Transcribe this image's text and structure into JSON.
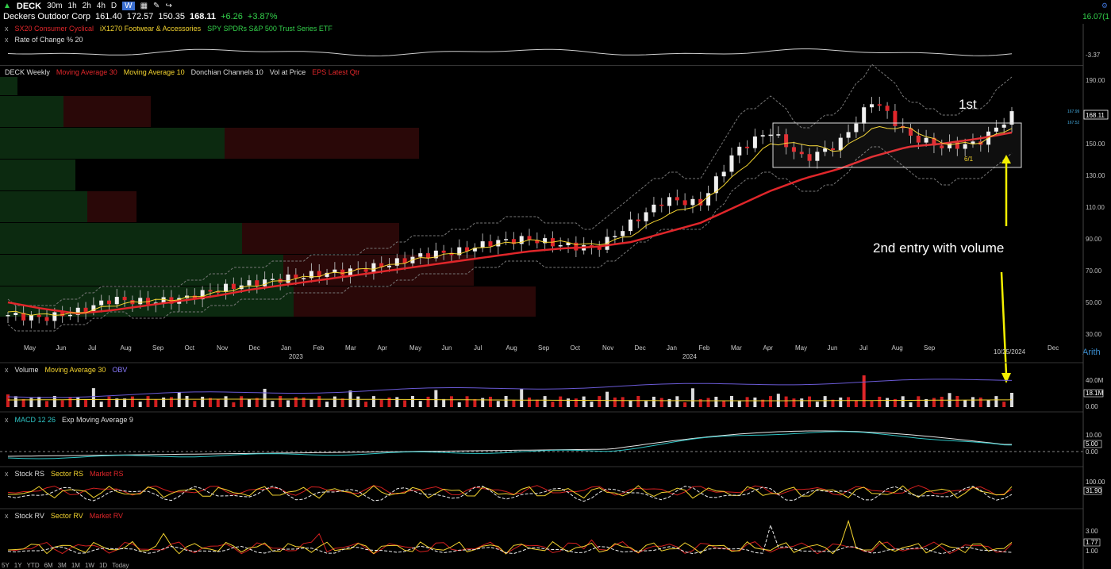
{
  "toolbar": {
    "symbol": "DECK",
    "intervals": [
      "30m",
      "1h",
      "2h",
      "4h",
      "D",
      "W"
    ],
    "active_interval": "W"
  },
  "quote": {
    "name": "Deckers Outdoor Corp",
    "open": "161.40",
    "high": "172.57",
    "low": "150.35",
    "last": "168.11",
    "change": "+6.26",
    "change_pct": "+3.87%",
    "top_right_value": "16.07(1"
  },
  "sector_line": {
    "sector": "SX20 Consumer Cyclical",
    "industry": "iX1270 Footwear & Accessories",
    "etf": "SPY SPDRs S&P 500 Trust Series ETF"
  },
  "roc_pane": {
    "label": "Rate of Change % 20",
    "value": "-3.37"
  },
  "price_pane": {
    "studies": [
      "DECK Weekly",
      "Moving Average 30",
      "Moving Average 10",
      "Donchian Channels 10",
      "Vol at Price",
      "EPS Latest Qtr"
    ],
    "last_price_tag": "168.11",
    "small_tags": [
      "167.99",
      "167.52"
    ],
    "y_ticks": [
      "190.00",
      "150.00",
      "130.00",
      "110.00",
      "90.00",
      "70.00",
      "50.00",
      "30.00"
    ],
    "months": [
      "May",
      "Jun",
      "Jul",
      "Aug",
      "Sep",
      "Oct",
      "Nov",
      "Dec",
      "Jan",
      "Feb",
      "Mar",
      "Apr",
      "May",
      "Jun",
      "Jul",
      "Aug",
      "Sep",
      "Oct",
      "Nov",
      "Dec",
      "Jan",
      "Feb",
      "Mar",
      "Apr",
      "May",
      "Jun",
      "Jul",
      "Aug",
      "Sep",
      "Dec"
    ],
    "years": [
      "2023",
      "2024"
    ],
    "date_tag": "10/25/2024",
    "scale_label": "Arith",
    "earnings_tag": "6/1",
    "annotation_1": "1st",
    "annotation_2": "2nd entry with volume"
  },
  "volume_pane": {
    "studies": [
      "Volume",
      "Moving Average 30",
      "OBV"
    ],
    "ticks": [
      "40.0M",
      "18.1M",
      "0.00"
    ]
  },
  "macd_pane": {
    "studies": [
      "MACD 12 26",
      "Exp Moving Average 9"
    ],
    "ticks": [
      "10.00",
      "5.00",
      "0.00"
    ]
  },
  "rs_pane": {
    "studies": [
      "Stock RS",
      "Sector RS",
      "Market RS"
    ],
    "ticks": [
      "100.00",
      "31.90"
    ]
  },
  "rv_pane": {
    "studies": [
      "Stock RV",
      "Sector RV",
      "Market RV"
    ],
    "ticks": [
      "3.00",
      "1.77",
      "1.00"
    ]
  },
  "bottom_bar": [
    "5Y",
    "1Y",
    "YTD",
    "6M",
    "3M",
    "1M",
    "1W",
    "1D",
    "Today"
  ],
  "chart_data": {
    "type": "line",
    "title": "DECK Weekly",
    "x": [
      "2022-05",
      "2022-06",
      "2022-07",
      "2022-08",
      "2022-09",
      "2022-10",
      "2022-11",
      "2022-12",
      "2023-01",
      "2023-02",
      "2023-03",
      "2023-04",
      "2023-05",
      "2023-06",
      "2023-07",
      "2023-08",
      "2023-09",
      "2023-10",
      "2023-11",
      "2023-12",
      "2024-01",
      "2024-02",
      "2024-03",
      "2024-04",
      "2024-05",
      "2024-06",
      "2024-07",
      "2024-08",
      "2024-09",
      "2024-10"
    ],
    "series": [
      {
        "name": "DECK Weekly",
        "values": [
          42,
          40,
          44,
          52,
          50,
          52,
          58,
          62,
          65,
          68,
          70,
          74,
          80,
          82,
          88,
          90,
          86,
          84,
          100,
          115,
          112,
          145,
          158,
          140,
          150,
          178,
          155,
          148,
          150,
          168
        ]
      },
      {
        "name": "Moving Average 30",
        "values": [
          50,
          46,
          43,
          45,
          48,
          51,
          54,
          58,
          61,
          64,
          67,
          70,
          73,
          76,
          79,
          82,
          84,
          85,
          88,
          94,
          100,
          110,
          120,
          128,
          134,
          142,
          148,
          150,
          153,
          157
        ]
      },
      {
        "name": "Moving Average 10",
        "values": [
          44,
          42,
          43,
          48,
          51,
          52,
          56,
          60,
          64,
          67,
          70,
          73,
          78,
          81,
          86,
          89,
          88,
          86,
          92,
          105,
          112,
          130,
          150,
          150,
          145,
          160,
          160,
          150,
          150,
          160
        ]
      }
    ],
    "ylim": [
      30,
      195
    ],
    "ylabel": "",
    "xlabel": ""
  }
}
